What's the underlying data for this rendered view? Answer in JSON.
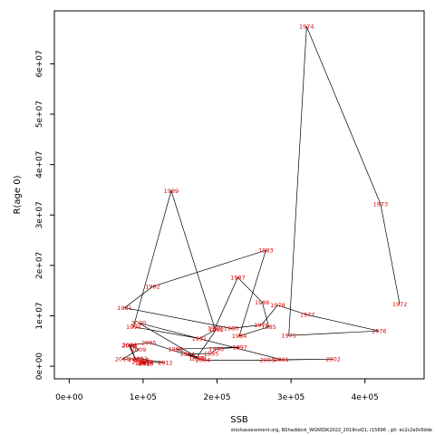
{
  "chart_data": {
    "type": "line",
    "title": "",
    "xlabel": "SSB",
    "ylabel": "R(age 0)",
    "xlim": [
      -20000,
      480000
    ],
    "ylim": [
      -2500000,
      70500000
    ],
    "x_ticks": [
      {
        "value": 0,
        "label": "0e+00"
      },
      {
        "value": 100000,
        "label": "1e+05"
      },
      {
        "value": 200000,
        "label": "2e+05"
      },
      {
        "value": 300000,
        "label": "3e+05"
      },
      {
        "value": 400000,
        "label": "4e+05"
      }
    ],
    "y_ticks": [
      {
        "value": 0,
        "label": "0e+00"
      },
      {
        "value": 10000000,
        "label": "1e+07"
      },
      {
        "value": 20000000,
        "label": "2e+07"
      },
      {
        "value": 30000000,
        "label": "3e+07"
      },
      {
        "value": 40000000,
        "label": "4e+07"
      },
      {
        "value": 50000000,
        "label": "5e+07"
      },
      {
        "value": 60000000,
        "label": "6e+07"
      }
    ],
    "grid": false,
    "legend": "none",
    "line_color": "#000000",
    "label_color": "#e00000",
    "points": [
      {
        "year": "1972",
        "x": 447000,
        "y": 12300000
      },
      {
        "year": "1973",
        "x": 421000,
        "y": 32200000
      },
      {
        "year": "1974",
        "x": 321000,
        "y": 67400000
      },
      {
        "year": "1975",
        "x": 297000,
        "y": 6100000
      },
      {
        "year": "1976",
        "x": 419000,
        "y": 7000000
      },
      {
        "year": "1977",
        "x": 322000,
        "y": 10200000
      },
      {
        "year": "1978",
        "x": 282000,
        "y": 12100000
      },
      {
        "year": "1979",
        "x": 260000,
        "y": 8200000
      },
      {
        "year": "1980",
        "x": 219000,
        "y": 7500000
      },
      {
        "year": "1981",
        "x": 75000,
        "y": 11600000
      },
      {
        "year": "1982",
        "x": 113000,
        "y": 15800000
      },
      {
        "year": "1983",
        "x": 266000,
        "y": 23000000
      },
      {
        "year": "1984",
        "x": 230000,
        "y": 6000000
      },
      {
        "year": "1985",
        "x": 270000,
        "y": 7800000
      },
      {
        "year": "1986",
        "x": 261000,
        "y": 12700000
      },
      {
        "year": "1987",
        "x": 228000,
        "y": 17600000
      },
      {
        "year": "1988",
        "x": 197000,
        "y": 7500000
      },
      {
        "year": "1989",
        "x": 138000,
        "y": 34800000
      },
      {
        "year": "1990",
        "x": 87000,
        "y": 7800000
      },
      {
        "year": "1991",
        "x": 176000,
        "y": 5500000
      },
      {
        "year": "1992",
        "x": 199000,
        "y": 7300000
      },
      {
        "year": "1993",
        "x": 172000,
        "y": 1600000
      },
      {
        "year": "1994",
        "x": 160000,
        "y": 2400000
      },
      {
        "year": "1995",
        "x": 192000,
        "y": 2500000
      },
      {
        "year": "1996",
        "x": 199000,
        "y": 3400000
      },
      {
        "year": "1997",
        "x": 231000,
        "y": 3800000
      },
      {
        "year": "1998",
        "x": 144000,
        "y": 3400000
      },
      {
        "year": "1999",
        "x": 175000,
        "y": 1600000
      },
      {
        "year": "2000",
        "x": 94000,
        "y": 8600000
      },
      {
        "year": "2001",
        "x": 287000,
        "y": 1300000
      },
      {
        "year": "2002",
        "x": 357000,
        "y": 1400000
      },
      {
        "year": "2003",
        "x": 268000,
        "y": 1200000
      },
      {
        "year": "2004",
        "x": 181000,
        "y": 1200000
      },
      {
        "year": "2005",
        "x": 108000,
        "y": 4700000
      },
      {
        "year": "2006",
        "x": 81000,
        "y": 4100000
      },
      {
        "year": "2007",
        "x": 90000,
        "y": 1300000
      },
      {
        "year": "2008",
        "x": 82000,
        "y": 4200000
      },
      {
        "year": "2009",
        "x": 94000,
        "y": 3300000
      },
      {
        "year": "2010",
        "x": 72000,
        "y": 1400000
      },
      {
        "year": "2011",
        "x": 96000,
        "y": 1500000
      },
      {
        "year": "2012",
        "x": 130000,
        "y": 700000
      },
      {
        "year": "2013",
        "x": 104000,
        "y": 800000
      },
      {
        "year": "2014",
        "x": 95000,
        "y": 900000
      },
      {
        "year": "2015",
        "x": 104000,
        "y": 500000
      },
      {
        "year": "2016",
        "x": 100000,
        "y": 600000
      },
      {
        "year": "2017",
        "x": 103000,
        "y": 700000
      },
      {
        "year": "2018",
        "x": 98000,
        "y": 1200000
      }
    ]
  },
  "footer": "stockassessment.org, NShaddock_WGNSSK2022_2019noQ1, r15696 , git: ec2c2a0c6dde"
}
